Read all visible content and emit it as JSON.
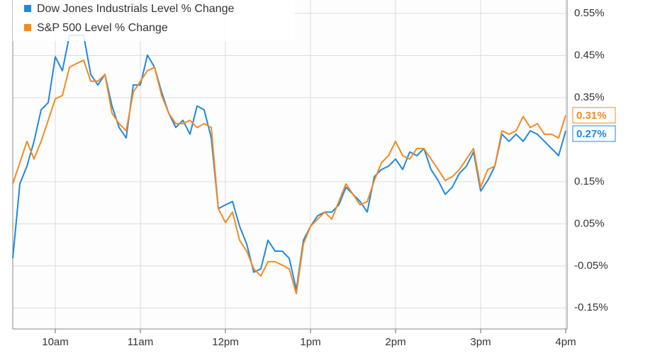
{
  "chart_data": {
    "type": "line",
    "x": [
      570,
      575,
      580,
      585,
      590,
      595,
      600,
      605,
      610,
      615,
      620,
      625,
      630,
      635,
      640,
      645,
      650,
      655,
      660,
      665,
      670,
      675,
      680,
      685,
      690,
      695,
      700,
      705,
      710,
      715,
      720,
      725,
      730,
      735,
      740,
      745,
      750,
      755,
      760,
      765,
      770,
      775,
      780,
      785,
      790,
      795,
      800,
      805,
      810,
      815,
      820,
      825,
      830,
      835,
      840,
      845,
      850,
      855,
      860,
      865,
      870,
      875,
      880,
      885,
      890,
      895,
      900,
      905,
      910,
      915,
      920,
      925,
      930,
      935,
      940,
      945,
      950,
      955,
      960
    ],
    "series": [
      {
        "name": "Dow Jones Industrials Level % Change",
        "color": "#1f88e0",
        "end_label": "0.27%",
        "values": [
          -0.032,
          0.145,
          0.187,
          0.246,
          0.321,
          0.338,
          0.447,
          0.414,
          0.498,
          0.498,
          0.498,
          0.405,
          0.38,
          0.405,
          0.33,
          0.279,
          0.254,
          0.38,
          0.38,
          0.451,
          0.422,
          0.363,
          0.313,
          0.279,
          0.296,
          0.263,
          0.33,
          0.321,
          0.254,
          0.086,
          0.095,
          0.103,
          0.044,
          0.002,
          -0.065,
          -0.057,
          0.011,
          -0.015,
          -0.015,
          -0.032,
          -0.107,
          0.011,
          0.044,
          0.069,
          0.078,
          0.078,
          0.095,
          0.137,
          0.12,
          0.103,
          0.078,
          0.162,
          0.179,
          0.187,
          0.204,
          0.179,
          0.221,
          0.212,
          0.229,
          0.179,
          0.153,
          0.12,
          0.137,
          0.17,
          0.187,
          0.221,
          0.128,
          0.153,
          0.187,
          0.263,
          0.246,
          0.263,
          0.246,
          0.271,
          0.263,
          0.246,
          0.229,
          0.212,
          0.271
        ]
      },
      {
        "name": "S&P 500 Level % Change",
        "color": "#f5891f",
        "end_label": "0.31%",
        "values": [
          0.145,
          0.195,
          0.246,
          0.204,
          0.246,
          0.296,
          0.347,
          0.355,
          0.422,
          0.431,
          0.439,
          0.389,
          0.389,
          0.405,
          0.313,
          0.288,
          0.271,
          0.363,
          0.389,
          0.414,
          0.422,
          0.355,
          0.313,
          0.288,
          0.288,
          0.296,
          0.279,
          0.288,
          0.279,
          0.086,
          0.053,
          0.078,
          0.011,
          -0.015,
          -0.057,
          -0.074,
          -0.04,
          -0.04,
          -0.048,
          -0.057,
          -0.116,
          0.002,
          0.044,
          0.061,
          0.078,
          0.061,
          0.103,
          0.145,
          0.12,
          0.095,
          0.103,
          0.153,
          0.195,
          0.212,
          0.246,
          0.212,
          0.204,
          0.229,
          0.229,
          0.204,
          0.179,
          0.153,
          0.162,
          0.179,
          0.204,
          0.229,
          0.137,
          0.179,
          0.187,
          0.271,
          0.263,
          0.271,
          0.305,
          0.279,
          0.288,
          0.263,
          0.263,
          0.254,
          0.308
        ]
      }
    ],
    "xlim": [
      570,
      961
    ],
    "xticks": [
      {
        "value": 600,
        "label": "10am"
      },
      {
        "value": 660,
        "label": "11am"
      },
      {
        "value": 720,
        "label": "12pm"
      },
      {
        "value": 780,
        "label": "1pm"
      },
      {
        "value": 840,
        "label": "2pm"
      },
      {
        "value": 900,
        "label": "3pm"
      },
      {
        "value": 960,
        "label": "4pm"
      }
    ],
    "ylim": [
      -0.2,
      0.582
    ],
    "yticks": [
      {
        "value": 0.55,
        "label": "0.55%"
      },
      {
        "value": 0.45,
        "label": "0.45%"
      },
      {
        "value": 0.35,
        "label": "0.35%"
      },
      {
        "value": 0.15,
        "label": "0.15%"
      },
      {
        "value": 0.05,
        "label": "0.05%"
      },
      {
        "value": -0.05,
        "label": "-0.05%"
      },
      {
        "value": -0.15,
        "label": "-0.15%"
      }
    ],
    "grid": true,
    "legend": "top-left"
  }
}
